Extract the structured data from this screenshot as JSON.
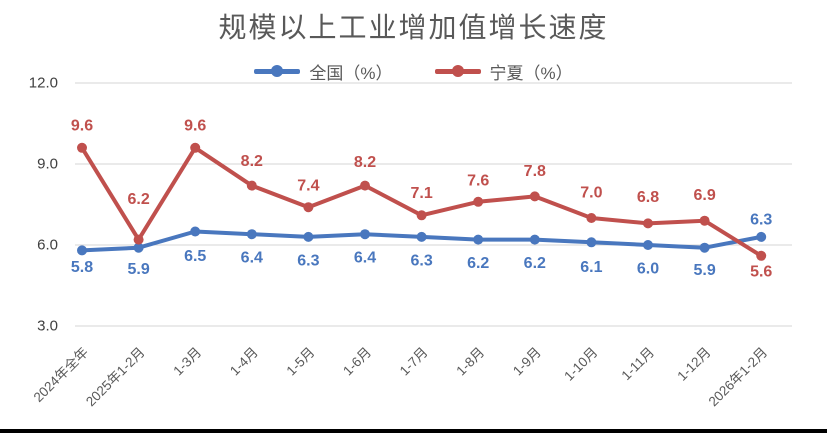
{
  "chart_data": {
    "type": "line",
    "title": "规模以上工业增加值增长速度",
    "legend_position": "top",
    "grid": true,
    "categories": [
      "2024年全年",
      "2025年1-2月",
      "1-3月",
      "1-4月",
      "1-5月",
      "1-6月",
      "1-7月",
      "1-8月",
      "1-9月",
      "1-10月",
      "1-11月",
      "1-12月",
      "2026年1-2月"
    ],
    "series": [
      {
        "name": "全国（%）",
        "color": "#4977BE",
        "values": [
          5.8,
          5.9,
          6.5,
          6.4,
          6.3,
          6.4,
          6.3,
          6.2,
          6.2,
          6.1,
          6.0,
          5.9,
          6.3
        ],
        "label_placement": [
          "below",
          "below",
          "below",
          "below",
          "below",
          "below",
          "below",
          "below",
          "below",
          "below",
          "below",
          "below",
          "above"
        ],
        "label_dy": [
          17,
          22,
          25,
          24,
          24,
          24,
          24,
          24,
          24,
          25,
          24,
          23,
          -17
        ]
      },
      {
        "name": "宁夏（%）",
        "color": "#C0504D",
        "values": [
          9.6,
          6.2,
          9.6,
          8.2,
          7.4,
          8.2,
          7.1,
          7.6,
          7.8,
          7.0,
          6.8,
          6.9,
          5.6
        ],
        "label_placement": [
          "above",
          "above",
          "above",
          "above",
          "above",
          "above",
          "above",
          "above",
          "above",
          "above",
          "above",
          "above",
          "below"
        ],
        "label_dy": [
          -22,
          -40,
          -22,
          -24,
          -21,
          -23,
          -22,
          -21,
          -25,
          -25,
          -26,
          -25,
          16
        ]
      }
    ],
    "y_axis": {
      "min": 3.0,
      "max": 12.0,
      "tick_values": [
        12.0,
        9.0,
        6.0,
        3.0
      ],
      "tick_labels": [
        "12.0",
        "9.0",
        "6.0",
        "3.0"
      ]
    }
  }
}
